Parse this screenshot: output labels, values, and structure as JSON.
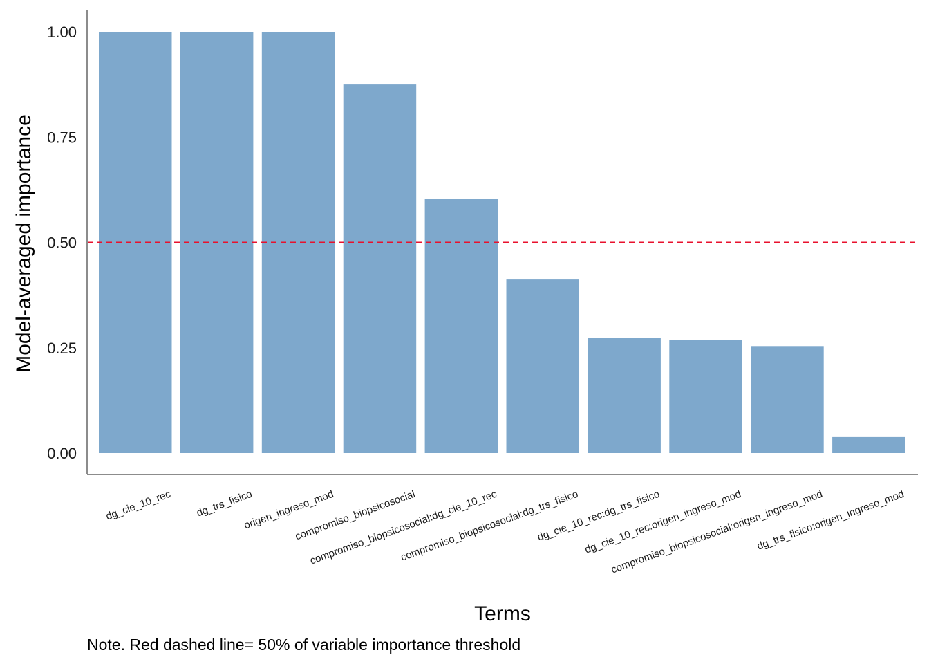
{
  "chart_data": {
    "type": "bar",
    "categories": [
      "dg_cie_10_rec",
      "dg_trs_fisico",
      "origen_ingreso_mod",
      "compromiso_biopsicosocial",
      "compromiso_biopsicosocial:dg_cie_10_rec",
      "compromiso_biopsicosocial:dg_trs_fisico",
      "dg_cie_10_rec:dg_trs_fisico",
      "dg_cie_10_rec:origen_ingreso_mod",
      "compromiso_biopsicosocial:origen_ingreso_mod",
      "dg_trs_fisico:origen_ingreso_mod"
    ],
    "values": [
      1.0,
      1.0,
      1.0,
      0.875,
      0.603,
      0.412,
      0.273,
      0.268,
      0.254,
      0.038
    ],
    "title": "",
    "xlabel": "Terms",
    "ylabel": "Model-averaged importance",
    "ylim": [
      -0.05,
      1.05
    ],
    "yticks": [
      "0.00",
      "0.25",
      "0.50",
      "0.75",
      "1.00"
    ],
    "ytick_values": [
      0,
      0.25,
      0.5,
      0.75,
      1.0
    ],
    "threshold": 0.5,
    "grid": false,
    "colors": {
      "bar": "#7ea8cc",
      "threshold_line": "#e8112d",
      "axis": "#8c8c8c"
    }
  },
  "note": "Note. Red dashed line= 50% of variable importance threshold"
}
